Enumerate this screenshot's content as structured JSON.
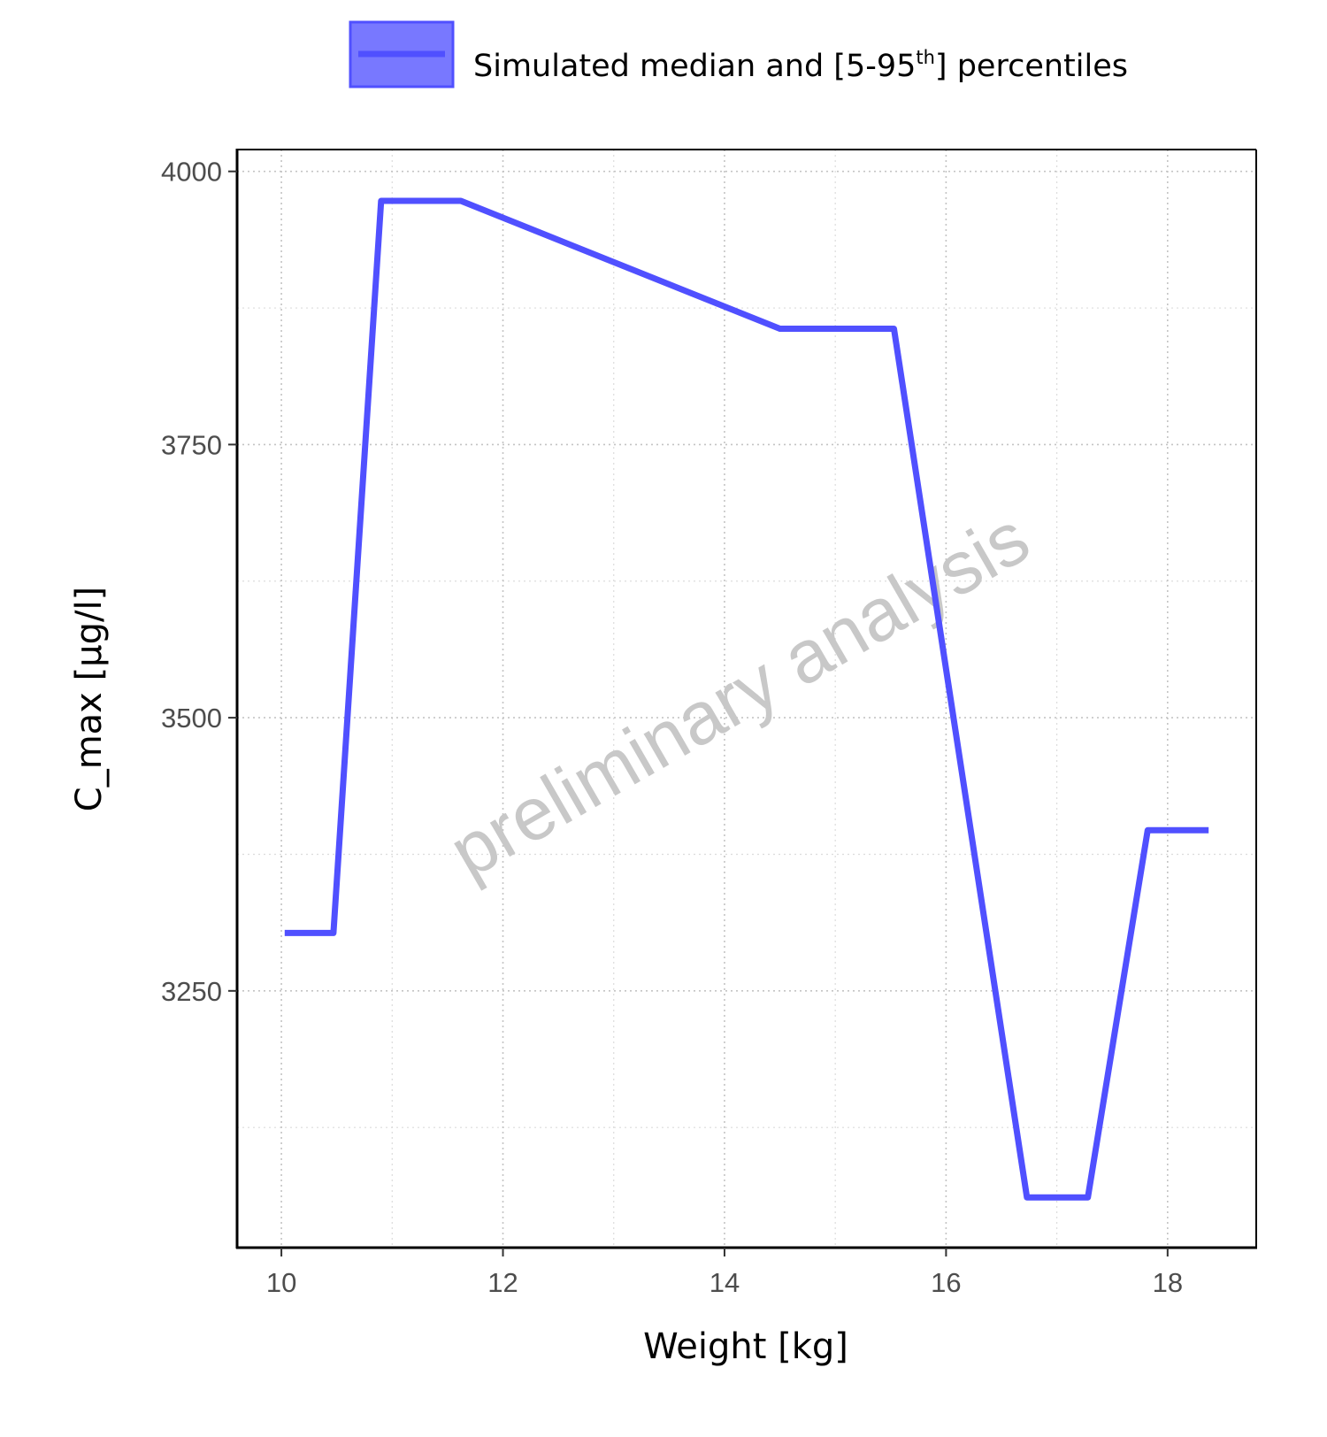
{
  "chart_data": {
    "type": "line",
    "xlabel": "Weight [kg]",
    "ylabel": "C_max [µg/l]",
    "xlim": [
      9.6,
      18.8
    ],
    "ylim": [
      3015,
      4020
    ],
    "x_ticks": [
      10,
      12,
      14,
      16,
      18
    ],
    "x_minor_ticks": [
      11,
      13,
      15,
      17
    ],
    "y_ticks": [
      3250,
      3500,
      3750,
      4000
    ],
    "y_minor_ticks": [
      3125,
      3375,
      3625,
      3875
    ],
    "x_tick_labels": [
      "10",
      "12",
      "14",
      "16",
      "18"
    ],
    "y_tick_labels": [
      "3250",
      "3500",
      "3750",
      "4000"
    ],
    "grid": true,
    "legend_position": "top",
    "legend": {
      "label_main": "Simulated median and [5-95",
      "label_sup": "th",
      "label_end": "] percentiles"
    },
    "watermark": "preliminary analysis",
    "series": [
      {
        "name": "Simulated median and [5-95th] percentiles",
        "color": "#5050ff",
        "x": [
          10.03,
          10.47,
          10.9,
          11.62,
          14.5,
          15.53,
          16.73,
          17.28,
          17.82,
          18.37
        ],
        "y": [
          3303,
          3303,
          3973,
          3973,
          3856,
          3856,
          3061,
          3061,
          3397,
          3397
        ]
      }
    ]
  }
}
